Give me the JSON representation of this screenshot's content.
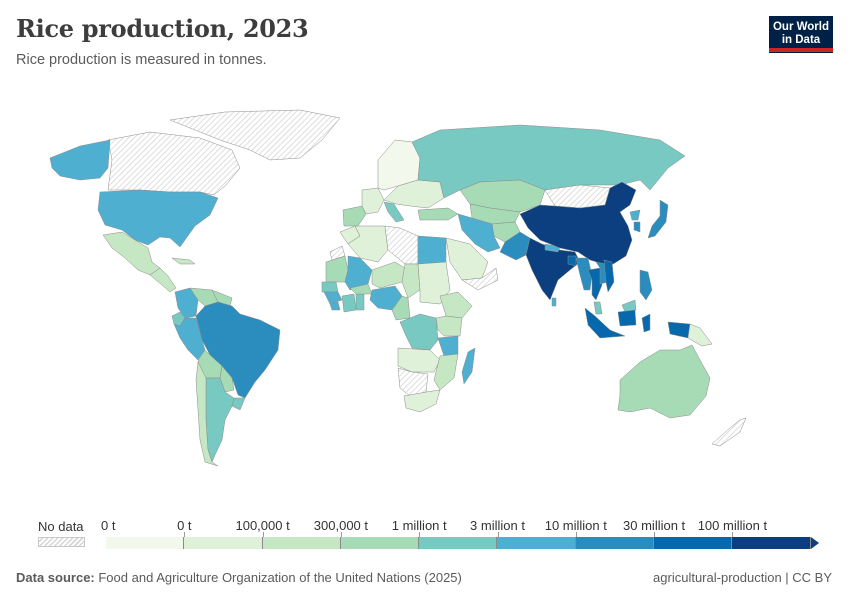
{
  "header": {
    "title": "Rice production, 2023",
    "subtitle": "Rice production is measured in tonnes.",
    "logo_line1": "Our World",
    "logo_line2": "in Data"
  },
  "legend": {
    "no_data_label": "No data",
    "ticks": [
      "0 t",
      "0 t",
      "100,000 t",
      "300,000 t",
      "1 million t",
      "3 million t",
      "10 million t",
      "30 million t",
      "100 million t"
    ],
    "bin_colors": [
      "#f2f9ec",
      "#dff1d9",
      "#c6e7c3",
      "#a6dbb6",
      "#78c9c2",
      "#4eafd0",
      "#2b8cbe",
      "#0868ac",
      "#0b3f7f"
    ]
  },
  "colors": {
    "no_data_fill": "#f0f0f0",
    "no_data_hatch": "#d5d5d5",
    "border": "#8c8c8c",
    "logo_bg": "#002147",
    "logo_accent": "#ce261e"
  },
  "chart_data": {
    "type": "choropleth",
    "title": "Rice production, 2023",
    "subtitle": "Rice production is measured in tonnes.",
    "unit": "tonnes",
    "bins": [
      "0 t",
      "0 – 100,000 t",
      "100,000 – 300,000 t",
      "300,000 t – 1 million t",
      "1 – 3 million t",
      "3 – 10 million t",
      "10 – 30 million t",
      "30 – 100 million t",
      ">100 million t"
    ],
    "regions": [
      {
        "name": "United States",
        "bin": 5
      },
      {
        "name": "Alaska (US)",
        "bin": 5
      },
      {
        "name": "Canada",
        "bin": -1
      },
      {
        "name": "Greenland",
        "bin": -1
      },
      {
        "name": "Mexico",
        "bin": 2
      },
      {
        "name": "Central America",
        "bin": 2
      },
      {
        "name": "Cuba",
        "bin": 2
      },
      {
        "name": "Colombia",
        "bin": 5
      },
      {
        "name": "Venezuela",
        "bin": 3
      },
      {
        "name": "Guyana/Suriname",
        "bin": 3
      },
      {
        "name": "Ecuador",
        "bin": 4
      },
      {
        "name": "Peru",
        "bin": 5
      },
      {
        "name": "Brazil",
        "bin": 6
      },
      {
        "name": "Bolivia",
        "bin": 3
      },
      {
        "name": "Paraguay",
        "bin": 3
      },
      {
        "name": "Uruguay",
        "bin": 4
      },
      {
        "name": "Argentina",
        "bin": 4
      },
      {
        "name": "Chile",
        "bin": 2
      },
      {
        "name": "Spain/Portugal",
        "bin": 3
      },
      {
        "name": "France",
        "bin": 1
      },
      {
        "name": "Italy",
        "bin": 4
      },
      {
        "name": "Northern Europe",
        "bin": 0
      },
      {
        "name": "Eastern Europe",
        "bin": 1
      },
      {
        "name": "Turkey",
        "bin": 3
      },
      {
        "name": "Russia",
        "bin": 4
      },
      {
        "name": "Kazakhstan",
        "bin": 3
      },
      {
        "name": "Uzbekistan/Turkmenistan",
        "bin": 3
      },
      {
        "name": "Afghanistan",
        "bin": 3
      },
      {
        "name": "Iran",
        "bin": 5
      },
      {
        "name": "Pakistan",
        "bin": 6
      },
      {
        "name": "India",
        "bin": 8
      },
      {
        "name": "China",
        "bin": 8
      },
      {
        "name": "Bangladesh",
        "bin": 7
      },
      {
        "name": "Mongolia",
        "bin": -1
      },
      {
        "name": "Nepal",
        "bin": 5
      },
      {
        "name": "Myanmar",
        "bin": 6
      },
      {
        "name": "Thailand",
        "bin": 7
      },
      {
        "name": "Vietnam",
        "bin": 7
      },
      {
        "name": "Cambodia/Laos",
        "bin": 6
      },
      {
        "name": "Malaysia",
        "bin": 4
      },
      {
        "name": "Philippines",
        "bin": 6
      },
      {
        "name": "Indonesia",
        "bin": 7
      },
      {
        "name": "Papua New Guinea",
        "bin": 1
      },
      {
        "name": "Japan",
        "bin": 6
      },
      {
        "name": "South Korea",
        "bin": 6
      },
      {
        "name": "North Korea",
        "bin": 5
      },
      {
        "name": "Sri Lanka",
        "bin": 5
      },
      {
        "name": "Australia",
        "bin": 3
      },
      {
        "name": "New Zealand",
        "bin": -1
      },
      {
        "name": "Egypt",
        "bin": 5
      },
      {
        "name": "Libya",
        "bin": -1
      },
      {
        "name": "Algeria",
        "bin": 1
      },
      {
        "name": "Morocco",
        "bin": 1
      },
      {
        "name": "Western Sahara",
        "bin": -1
      },
      {
        "name": "Mauritania",
        "bin": 3
      },
      {
        "name": "Mali",
        "bin": 5
      },
      {
        "name": "Senegal",
        "bin": 4
      },
      {
        "name": "Guinea",
        "bin": 5
      },
      {
        "name": "Sierra Leone",
        "bin": 5
      },
      {
        "name": "Côte d'Ivoire",
        "bin": 4
      },
      {
        "name": "Ghana",
        "bin": 4
      },
      {
        "name": "Burkina Faso",
        "bin": 3
      },
      {
        "name": "Niger",
        "bin": 2
      },
      {
        "name": "Nigeria",
        "bin": 5
      },
      {
        "name": "Chad",
        "bin": 2
      },
      {
        "name": "Sudan",
        "bin": 1
      },
      {
        "name": "Cameroon",
        "bin": 3
      },
      {
        "name": "Ethiopia",
        "bin": 2
      },
      {
        "name": "DR Congo",
        "bin": 4
      },
      {
        "name": "Tanzania",
        "bin": 5
      },
      {
        "name": "Kenya/Uganda",
        "bin": 2
      },
      {
        "name": "Angola/Zambia",
        "bin": 1
      },
      {
        "name": "Mozambique/Malawi",
        "bin": 2
      },
      {
        "name": "Madagascar",
        "bin": 5
      },
      {
        "name": "Namibia/Botswana",
        "bin": -1
      },
      {
        "name": "South Africa",
        "bin": 1
      },
      {
        "name": "Saudi Arabia",
        "bin": 1
      },
      {
        "name": "Oman/Yemen",
        "bin": -1
      }
    ],
    "legend_position": "bottom"
  },
  "footer": {
    "source_label": "Data source:",
    "source_text": " Food and Agriculture Organization of the United Nations (2025)",
    "right_text": "agricultural-production | CC BY"
  }
}
